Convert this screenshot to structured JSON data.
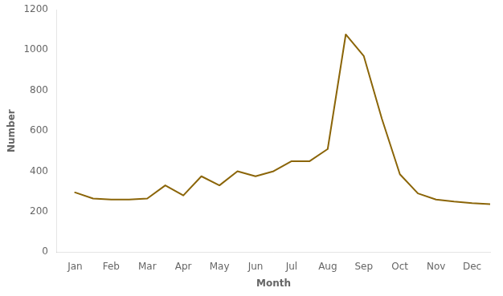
{
  "chart_data": {
    "type": "line",
    "x": [
      0.5,
      1,
      1.5,
      2,
      2.5,
      3,
      3.5,
      4,
      4.5,
      5,
      5.5,
      6,
      6.5,
      7,
      7.5,
      8,
      8.5,
      9,
      9.5,
      10,
      10.5,
      11,
      11.5,
      12
    ],
    "values": [
      295,
      265,
      260,
      260,
      265,
      330,
      280,
      375,
      330,
      400,
      375,
      400,
      450,
      450,
      510,
      1077,
      970,
      660,
      385,
      290,
      260,
      250,
      242,
      237
    ],
    "color": "#8B6508",
    "xlabel": "Month",
    "ylabel": "Number",
    "xlim": [
      0,
      12
    ],
    "xticks": [
      {
        "value": 0.5,
        "label": "Jan"
      },
      {
        "value": 1.5,
        "label": "Feb"
      },
      {
        "value": 2.5,
        "label": "Mar"
      },
      {
        "value": 3.5,
        "label": "Apr"
      },
      {
        "value": 4.5,
        "label": "May"
      },
      {
        "value": 5.5,
        "label": "Jun"
      },
      {
        "value": 6.5,
        "label": "Jul"
      },
      {
        "value": 7.5,
        "label": "Aug"
      },
      {
        "value": 8.5,
        "label": "Sep"
      },
      {
        "value": 9.5,
        "label": "Oct"
      },
      {
        "value": 10.5,
        "label": "Nov"
      },
      {
        "value": 11.5,
        "label": "Dec"
      }
    ],
    "ylim": [
      0,
      1200
    ],
    "yticks": [
      0,
      200,
      400,
      600,
      800,
      1000,
      1200
    ],
    "grid": false
  }
}
